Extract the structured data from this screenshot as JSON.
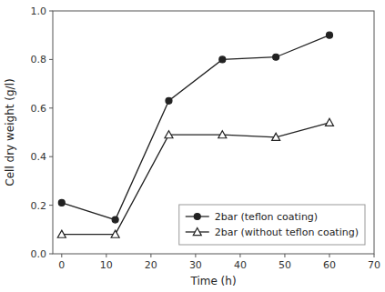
{
  "chart_data": {
    "type": "line",
    "x": [
      0,
      12,
      24,
      36,
      48,
      60
    ],
    "series": [
      {
        "name": "2bar (teflon coating)",
        "color": "#222222",
        "marker": "circle",
        "line_style": "solid",
        "values": [
          0.21,
          0.14,
          0.63,
          0.8,
          0.81,
          0.9
        ]
      },
      {
        "name": "2bar (without teflon coating)",
        "color": "#222222",
        "marker": "triangle-open",
        "line_style": "solid",
        "values": [
          0.08,
          0.08,
          0.49,
          0.49,
          0.48,
          0.54
        ]
      }
    ],
    "xlabel": "Time (h)",
    "ylabel": "Cell dry weight (g/l)",
    "xlim": [
      -2,
      70
    ],
    "ylim": [
      0.0,
      1.0
    ],
    "xticks": [
      0,
      10,
      20,
      30,
      40,
      50,
      60,
      70
    ],
    "yticks": [
      {
        "value": 0.0,
        "label": "0.0"
      },
      0.2,
      0.4,
      0.6,
      0.8,
      {
        "value": 1.0,
        "label": "1.0"
      }
    ],
    "grid": false,
    "legend": "lower right"
  }
}
